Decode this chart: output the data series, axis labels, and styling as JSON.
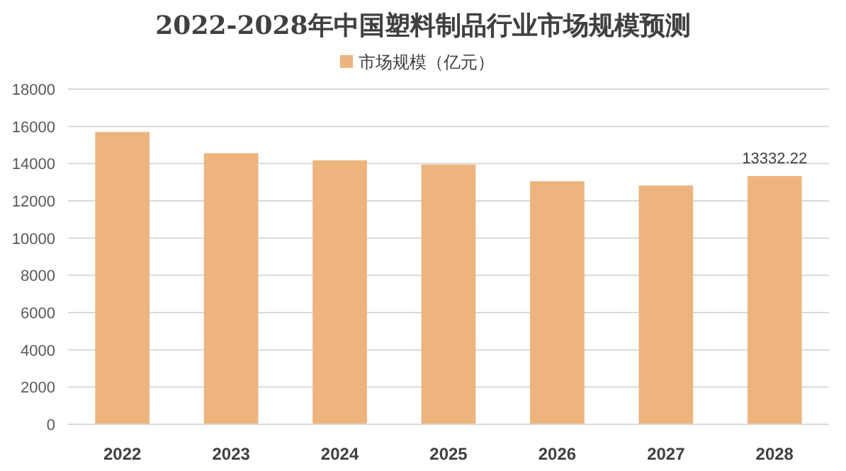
{
  "chart_data": {
    "type": "bar",
    "title": "2022-2028年中国塑料制品行业市场规模预测",
    "categories": [
      "2022",
      "2023",
      "2024",
      "2025",
      "2026",
      "2027",
      "2028"
    ],
    "series": [
      {
        "name": "市场规模（亿元）",
        "color": "#edb47e",
        "values": [
          15700,
          14560,
          14180,
          13950,
          13050,
          12820,
          13332.22
        ],
        "value_labels": [
          null,
          null,
          null,
          null,
          null,
          null,
          "13332.22"
        ]
      }
    ],
    "ylim": [
      0,
      18000
    ],
    "yticks": [
      0,
      2000,
      4000,
      6000,
      8000,
      10000,
      12000,
      14000,
      16000,
      18000
    ],
    "grid": "y",
    "legend": "top"
  }
}
